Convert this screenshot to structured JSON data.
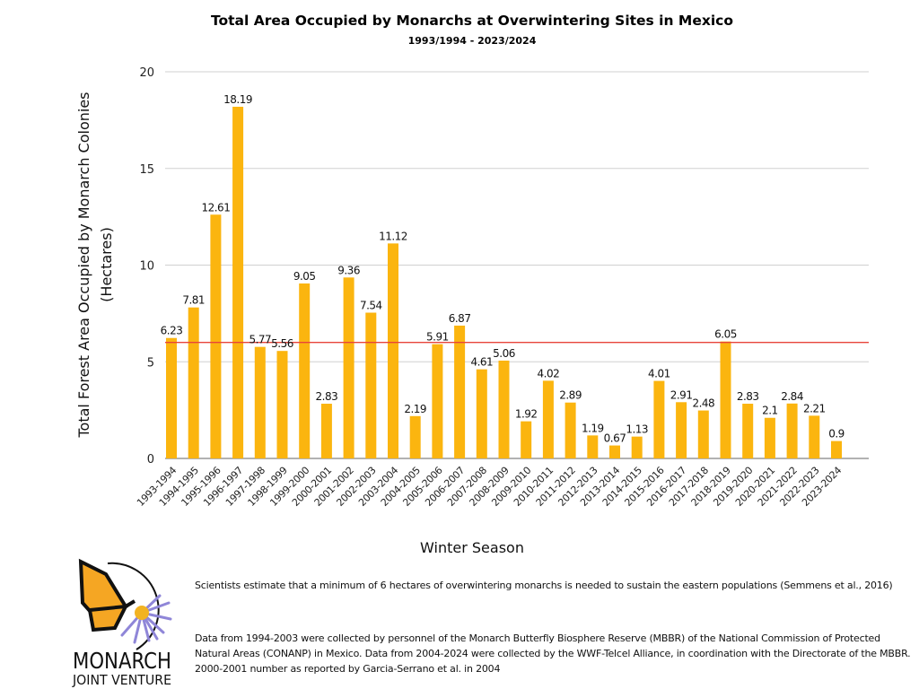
{
  "chart_data": {
    "type": "bar",
    "title": "Total Area Occupied by Monarchs at Overwintering Sites in Mexico",
    "subtitle": "1993/1994 - 2023/2024",
    "xlabel": "Winter Season",
    "ylabel_line1": "Total Forest Area Occupied by Monarch Colonies",
    "ylabel_line2": "(Hectares)",
    "ylim": [
      0,
      20
    ],
    "yticks": [
      0,
      5,
      10,
      15,
      20
    ],
    "grid": true,
    "bar_color": "#FBB50F",
    "reference_line": {
      "value": 6,
      "color": "#E8443A"
    },
    "categories": [
      "1993-1994",
      "1994-1995",
      "1995-1996",
      "1996-1997",
      "1997-1998",
      "1998-1999",
      "1999-2000",
      "2000-2001",
      "2001-2002",
      "2002-2003",
      "2003-2004",
      "2004-2005",
      "2005-2006",
      "2006-2007",
      "2007-2008",
      "2008-2009",
      "2009-2010",
      "2010-2011",
      "2011-2012",
      "2012-2013",
      "2013-2014",
      "2014-2015",
      "2015-2016",
      "2016-2017",
      "2017-2018",
      "2018-2019",
      "2019-2020",
      "2020-2021",
      "2021-2022",
      "2022-2023",
      "2023-2024"
    ],
    "values": [
      6.23,
      7.81,
      12.61,
      18.19,
      5.77,
      5.56,
      9.05,
      2.83,
      9.36,
      7.54,
      11.12,
      2.19,
      5.91,
      6.87,
      4.61,
      5.06,
      1.92,
      4.02,
      2.89,
      1.19,
      0.67,
      1.13,
      4.01,
      2.91,
      2.48,
      6.05,
      2.83,
      2.1,
      2.84,
      2.21,
      0.9
    ]
  },
  "logo": {
    "line1": "MONARCH",
    "line2": "JOINT VENTURE"
  },
  "notes": {
    "note1": "Scientists estimate that a minimum of 6 hectares of overwintering monarchs is needed to sustain the eastern populations (Semmens et al., 2016)",
    "note2": "Data from  1994-2003 were collected by personnel of the Monarch Butterfly Biosphere Reserve (MBBR) of the National Commission of Protected Natural Areas (CONANP) in Mexico. Data from 2004-2024 were collected by the WWF-Telcel Alliance, in coordination with the Directorate of the MBBR. 2000-2001 number as reported by Garcia-Serrano et al. in 2004"
  }
}
